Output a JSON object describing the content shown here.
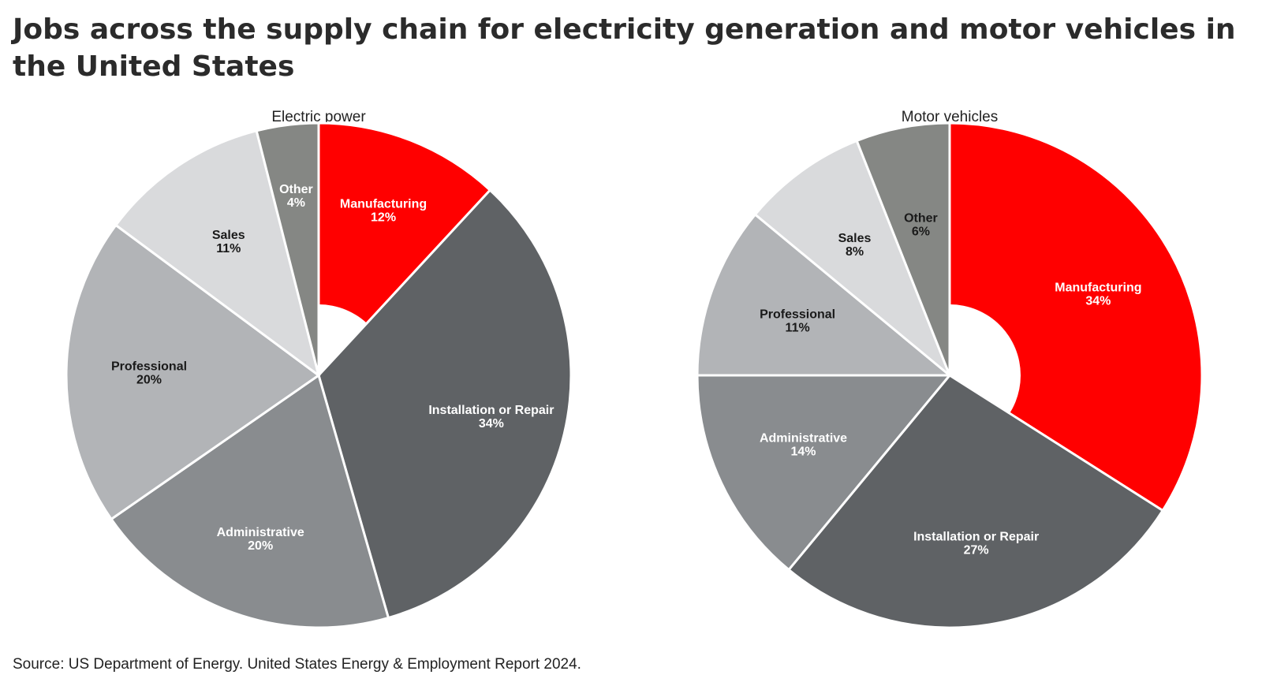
{
  "title": "Jobs across the supply chain for electricity generation and motor vehicles in the United States",
  "source": "Source: US Department of Energy. United States Energy & Employment Report 2024.",
  "chart_data": [
    {
      "type": "pie",
      "title": "Electric power",
      "donut": true,
      "slices": [
        {
          "label": "Manufacturing",
          "value": 12,
          "value_label": "12%",
          "color": "#ff0000",
          "text_color": "#ffffff"
        },
        {
          "label": "Installation or Repair",
          "value": 34,
          "value_label": "34%",
          "color": "#5f6265",
          "text_color": "#ffffff"
        },
        {
          "label": "Administrative",
          "value": 20,
          "value_label": "20%",
          "color": "#898c8f",
          "text_color": "#ffffff"
        },
        {
          "label": "Professional",
          "value": 20,
          "value_label": "20%",
          "color": "#b2b4b7",
          "text_color": "#1a1a1a"
        },
        {
          "label": "Sales",
          "value": 11,
          "value_label": "11%",
          "color": "#d9dadc",
          "text_color": "#1a1a1a"
        },
        {
          "label": "Other",
          "value": 4,
          "value_label": "4%",
          "color": "#858784",
          "text_color": "#ffffff"
        }
      ]
    },
    {
      "type": "pie",
      "title": "Motor vehicles",
      "donut": true,
      "slices": [
        {
          "label": "Manufacturing",
          "value": 34,
          "value_label": "34%",
          "color": "#ff0000",
          "text_color": "#ffffff"
        },
        {
          "label": "Installation or Repair",
          "value": 27,
          "value_label": "27%",
          "color": "#5f6265",
          "text_color": "#ffffff"
        },
        {
          "label": "Administrative",
          "value": 14,
          "value_label": "14%",
          "color": "#898c8f",
          "text_color": "#ffffff"
        },
        {
          "label": "Professional",
          "value": 11,
          "value_label": "11%",
          "color": "#b2b4b7",
          "text_color": "#1a1a1a"
        },
        {
          "label": "Sales",
          "value": 8,
          "value_label": "8%",
          "color": "#d9dadc",
          "text_color": "#1a1a1a"
        },
        {
          "label": "Other",
          "value": 6,
          "value_label": "6%",
          "color": "#858784",
          "text_color": "#1a1a1a"
        }
      ]
    }
  ]
}
